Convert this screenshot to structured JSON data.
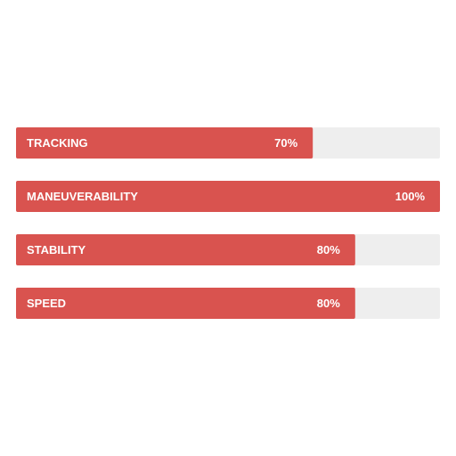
{
  "chart_data": {
    "type": "bar",
    "orientation": "horizontal",
    "categories": [
      "TRACKING",
      "MANEUVERABILITY",
      "STABILITY",
      "SPEED"
    ],
    "values": [
      70,
      100,
      80,
      80
    ],
    "value_labels": [
      "70%",
      "100%",
      "80%",
      "80%"
    ],
    "color": "#d9534f",
    "track_color": "#eeeeee",
    "xlim": [
      0,
      100
    ]
  }
}
